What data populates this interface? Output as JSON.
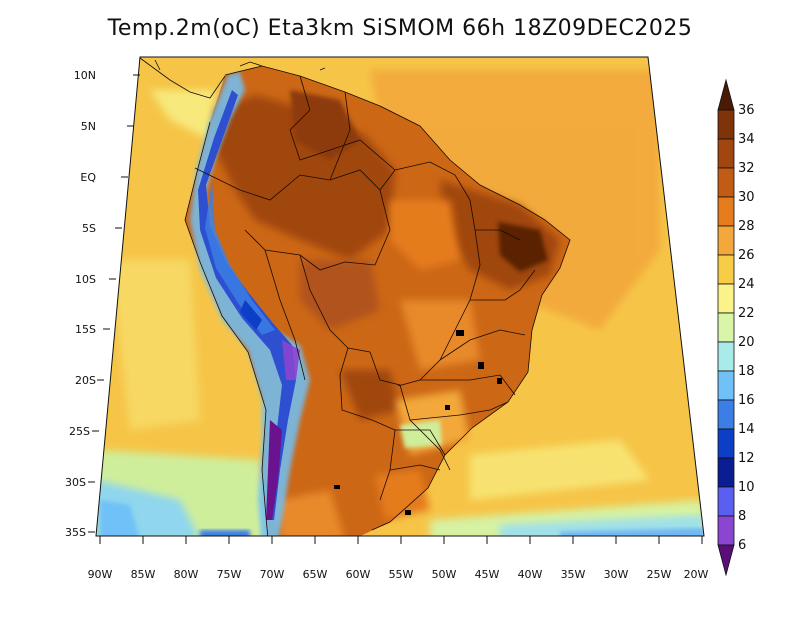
{
  "title": "Temp.2m(oC) Eta3km SiSMOM 66h 18Z09DEC2025",
  "map": {
    "lon_labels": [
      "90W",
      "85W",
      "80W",
      "75W",
      "70W",
      "65W",
      "60W",
      "55W",
      "50W",
      "45W",
      "40W",
      "35W",
      "30W",
      "25W",
      "20W"
    ],
    "lat_labels": [
      "10N",
      "5N",
      "EQ",
      "5S",
      "10S",
      "15S",
      "20S",
      "25S",
      "30S",
      "35S"
    ]
  },
  "colorbar": {
    "tick_labels": [
      "36",
      "34",
      "32",
      "30",
      "28",
      "26",
      "24",
      "22",
      "20",
      "18",
      "16",
      "14",
      "12",
      "10",
      "8",
      "6"
    ],
    "colors": [
      "#5a2306",
      "#7e3308",
      "#a0460e",
      "#c05c14",
      "#e57c1e",
      "#f4a73a",
      "#f7cc47",
      "#fbf28a",
      "#d8f5a8",
      "#a9ebe8",
      "#6fc1f7",
      "#3b7fe6",
      "#0d3ec6",
      "#0a1d92",
      "#5a5ff0",
      "#8a45d1",
      "#6b128f"
    ],
    "top_color": "#4a1a04",
    "bottom_color": "#5a0f78"
  }
}
